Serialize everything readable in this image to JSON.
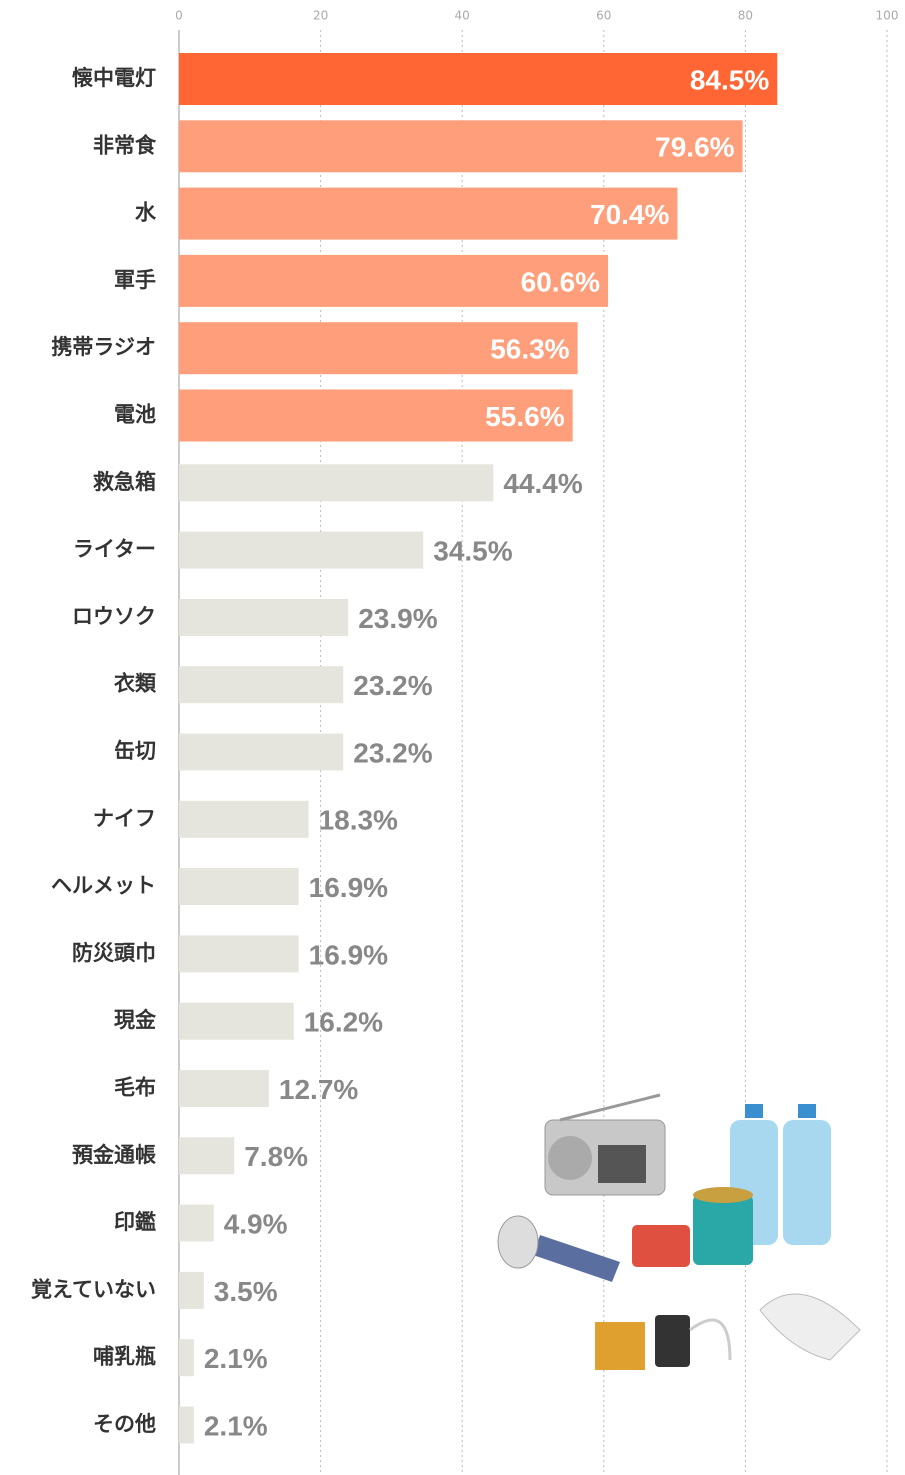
{
  "chart_data": {
    "type": "hbar",
    "categories": [
      "懐中電灯",
      "非常食",
      "水",
      "軍手",
      "携帯ラジオ",
      "電池",
      "救急箱",
      "ライター",
      "ロウソク",
      "衣類",
      "缶切",
      "ナイフ",
      "ヘルメット",
      "防災頭巾",
      "現金",
      "毛布",
      "預金通帳",
      "印鑑",
      "覚えていない",
      "哺乳瓶",
      "その他"
    ],
    "values": [
      84.5,
      79.6,
      70.4,
      60.6,
      56.3,
      55.6,
      44.4,
      34.5,
      23.9,
      23.2,
      23.2,
      18.3,
      16.9,
      16.9,
      16.2,
      12.7,
      7.8,
      4.9,
      3.5,
      2.1,
      2.1
    ],
    "value_labels": [
      "84.5%",
      "79.6%",
      "70.4%",
      "60.6%",
      "56.3%",
      "55.6%",
      "44.4%",
      "34.5%",
      "23.9%",
      "23.2%",
      "23.2%",
      "18.3%",
      "16.9%",
      "16.9%",
      "16.2%",
      "12.7%",
      "7.8%",
      "4.9%",
      "3.5%",
      "2.1%",
      "2.1%"
    ],
    "colors": [
      "#ff6633",
      "#ff9e7a",
      "#ff9e7a",
      "#ff9e7a",
      "#ff9e7a",
      "#ff9e7a",
      "#e5e5de",
      "#e5e5de",
      "#e5e5de",
      "#e5e5de",
      "#e5e5de",
      "#e5e5de",
      "#e5e5de",
      "#e5e5de",
      "#e5e5de",
      "#e5e5de",
      "#e5e5de",
      "#e5e5de",
      "#e5e5de",
      "#e5e5de",
      "#e5e5de"
    ],
    "xlim": [
      0,
      100
    ],
    "xticks": [
      0,
      20,
      40,
      60,
      80,
      100
    ],
    "grid": true
  }
}
